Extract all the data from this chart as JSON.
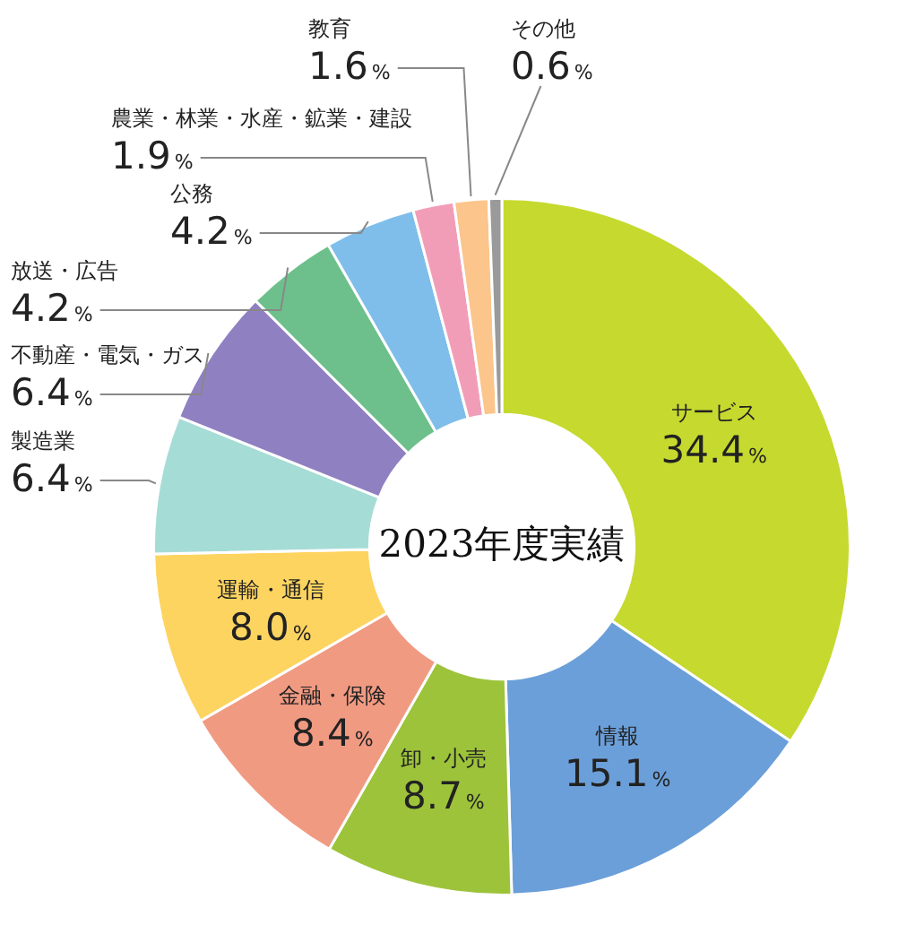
{
  "chart_data": {
    "type": "donut",
    "title": "2023年度実績",
    "categories": [
      "サービス",
      "情報",
      "卸・小売",
      "金融・保険",
      "運輸・通信",
      "製造業",
      "不動産・電気・ガス",
      "放送・広告",
      "公務",
      "農業・林業・水産・鉱業・建設",
      "教育",
      "その他"
    ],
    "values": [
      34.4,
      15.1,
      8.7,
      8.4,
      8.0,
      6.4,
      6.4,
      4.2,
      4.2,
      1.9,
      1.6,
      0.6
    ],
    "value_labels": [
      "34.4%",
      "15.1%",
      "8.7%",
      "8.4%",
      "8.0%",
      "6.4%",
      "6.4%",
      "4.2%",
      "4.2%",
      "1.9%",
      "1.6%",
      "0.6%"
    ],
    "colors": [
      "#c6d92e",
      "#6b9fd9",
      "#9dc33b",
      "#f19a82",
      "#fdd460",
      "#a6dcd6",
      "#8f80c2",
      "#6dc08b",
      "#7fbeea",
      "#f29db8",
      "#fbc58b",
      "#9a9a9a"
    ],
    "legend": false
  }
}
